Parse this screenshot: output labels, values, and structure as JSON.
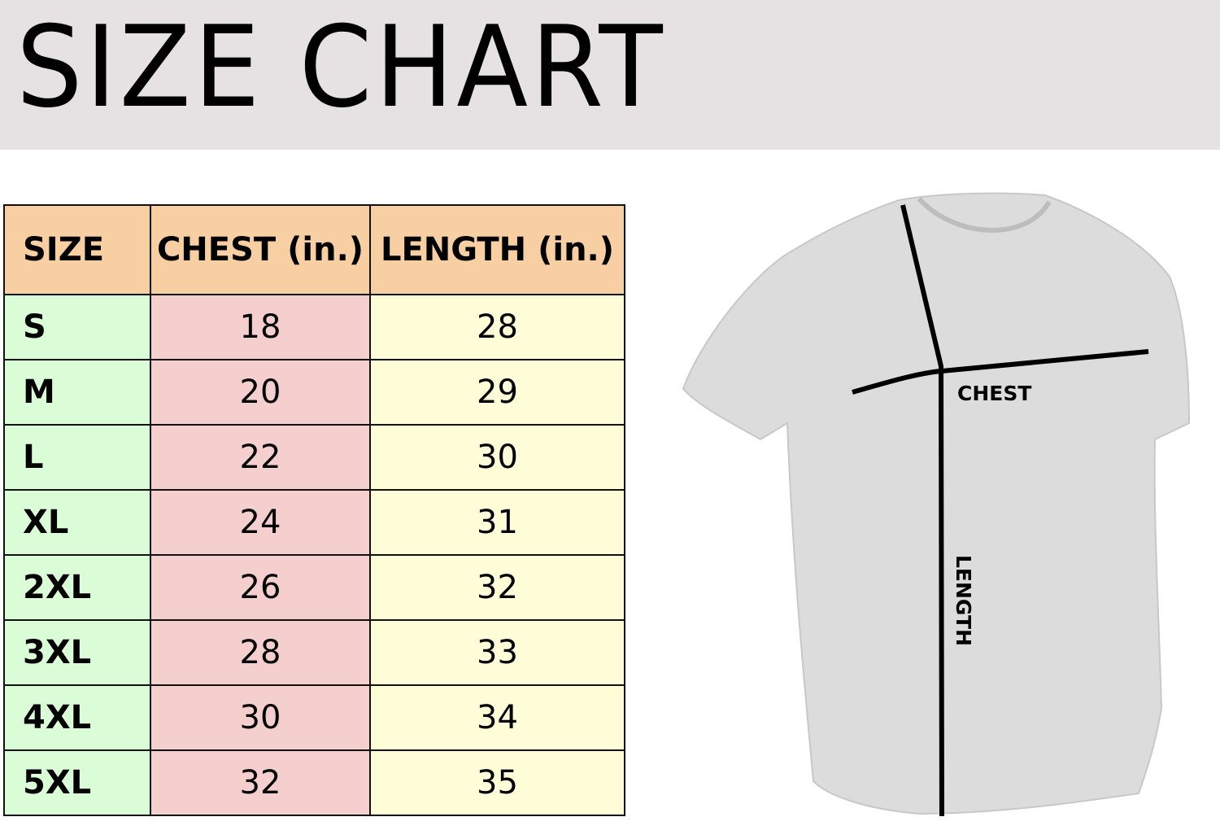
{
  "title": "SIZE CHART",
  "table": {
    "headers": [
      "SIZE",
      "CHEST (in.)",
      "LENGTH (in.)"
    ],
    "rows": [
      {
        "size": "S",
        "chest": "18",
        "length": "28"
      },
      {
        "size": "M",
        "chest": "20",
        "length": "29"
      },
      {
        "size": "L",
        "chest": "22",
        "length": "30"
      },
      {
        "size": "XL",
        "chest": "24",
        "length": "31"
      },
      {
        "size": "2XL",
        "chest": "26",
        "length": "32"
      },
      {
        "size": "3XL",
        "chest": "28",
        "length": "33"
      },
      {
        "size": "4XL",
        "chest": "30",
        "length": "34"
      },
      {
        "size": "5XL",
        "chest": "32",
        "length": "35"
      }
    ]
  },
  "diagram": {
    "chest_label": "CHEST",
    "length_label": "LENGTH"
  },
  "colors": {
    "banner": "#e6e2e3",
    "header": "#f7cfa2",
    "size_col": "#dafdd8",
    "chest_col": "#f5cfce",
    "length_col": "#fefdd8",
    "shirt": "#d9d9d9"
  }
}
